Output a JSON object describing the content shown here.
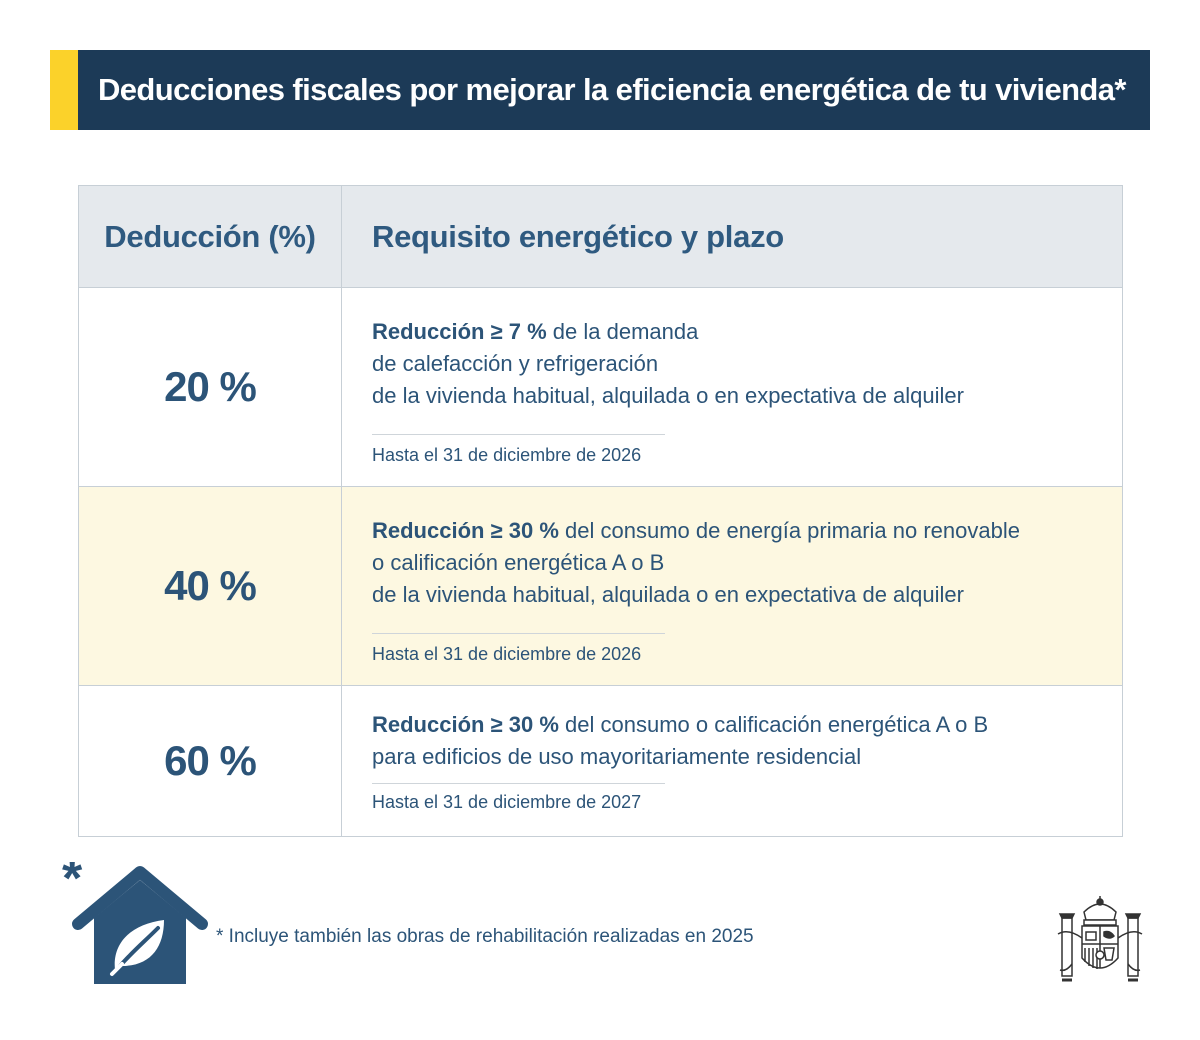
{
  "banner": {
    "title": "Deducciones fiscales por mejorar la eficiencia energética de tu vivienda*",
    "accent_color": "#fbd22a",
    "background_color": "#1c3a57"
  },
  "table": {
    "headers": [
      "Deducción (%)",
      "Requisito energético y plazo"
    ],
    "rows": [
      {
        "deduction": "20 %",
        "requirement_bold": "Reducción ≥ 7 %",
        "requirement_lines": [
          " de la demanda",
          "de calefacción y refrigeración",
          "de la vivienda habitual, alquilada o en expectativa de alquiler"
        ],
        "deadline": "Hasta el 31 de diciembre de 2026"
      },
      {
        "deduction": "40 %",
        "requirement_bold": "Reducción ≥ 30 %",
        "requirement_lines": [
          " del consumo de energía primaria no renovable",
          "o calificación energética A o B",
          "de la vivienda habitual, alquilada o en expectativa de alquiler"
        ],
        "deadline": "Hasta el 31 de diciembre de 2026",
        "highlight_color": "#fdf8e1"
      },
      {
        "deduction": "60 %",
        "requirement_bold": "Reducción ≥ 30 %",
        "requirement_lines": [
          " del consumo o calificación energética A o B",
          "para edificios de uso mayoritariamente residencial"
        ],
        "deadline": "Hasta el 31 de diciembre de 2027"
      }
    ]
  },
  "footer": {
    "asterisk": "*",
    "note": "* Incluye también las obras de rehabilitación realizadas en 2025",
    "icons": [
      "house-leaf-icon",
      "spain-coat-of-arms-icon"
    ]
  }
}
